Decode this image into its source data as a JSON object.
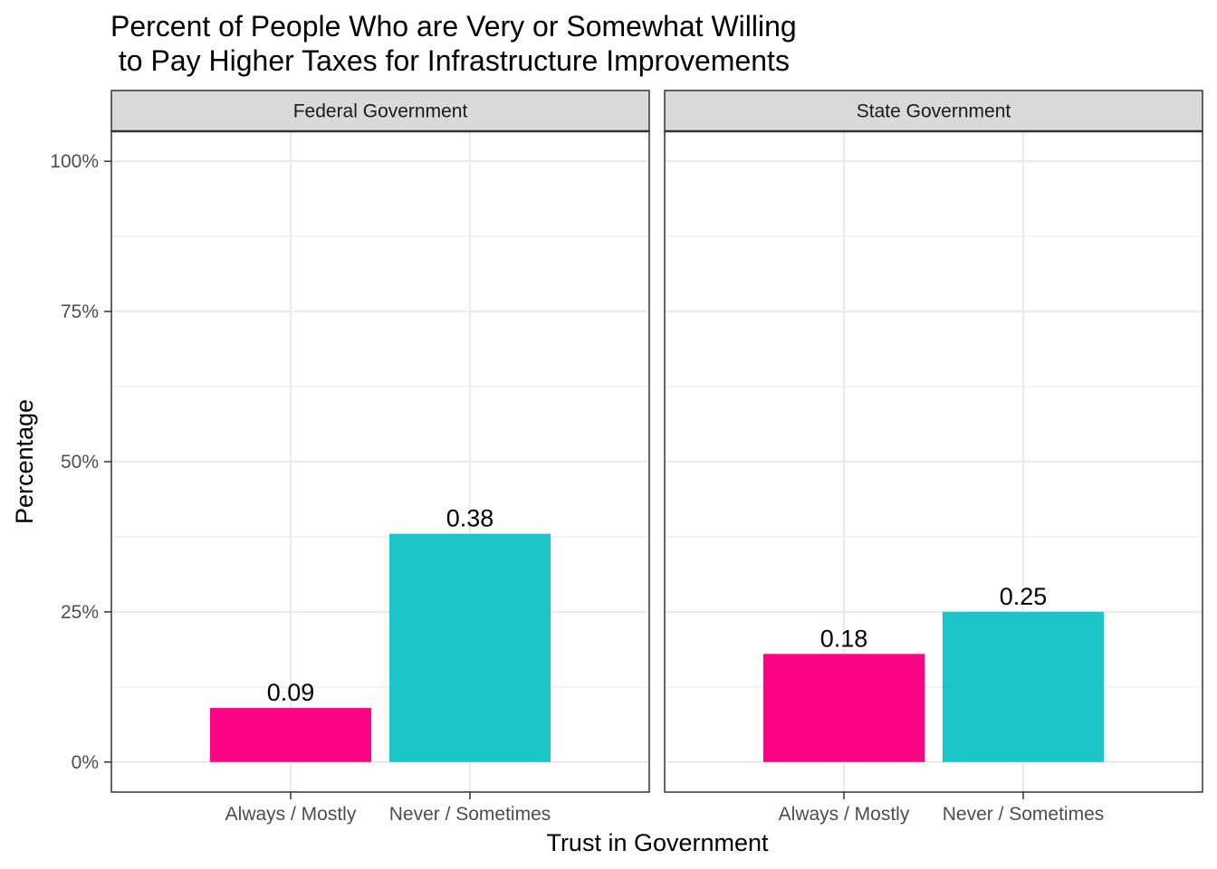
{
  "chart_data": {
    "type": "bar",
    "title_lines": [
      "Percent of People Who are Very or Somewhat Willing",
      " to Pay Higher Taxes for Infrastructure Improvements"
    ],
    "xlabel": "Trust in Government",
    "ylabel": "Percentage",
    "ylim": [
      -0.05,
      1.05
    ],
    "yticks": [
      0,
      0.25,
      0.5,
      0.75,
      1.0
    ],
    "ytick_labels": [
      "0%",
      "25%",
      "50%",
      "75%",
      "100%"
    ],
    "categories": [
      "Always / Mostly",
      "Never / Sometimes"
    ],
    "colors": {
      "Always / Mostly": "#FF0385",
      "Never / Sometimes": "#1CC5C7"
    },
    "grid": true,
    "legend": "none",
    "facets": [
      {
        "label": "Federal Government",
        "values": [
          0.09,
          0.38
        ],
        "value_labels": [
          "0.09",
          "0.38"
        ]
      },
      {
        "label": "State Government",
        "values": [
          0.18,
          0.25
        ],
        "value_labels": [
          "0.18",
          "0.25"
        ]
      }
    ]
  }
}
